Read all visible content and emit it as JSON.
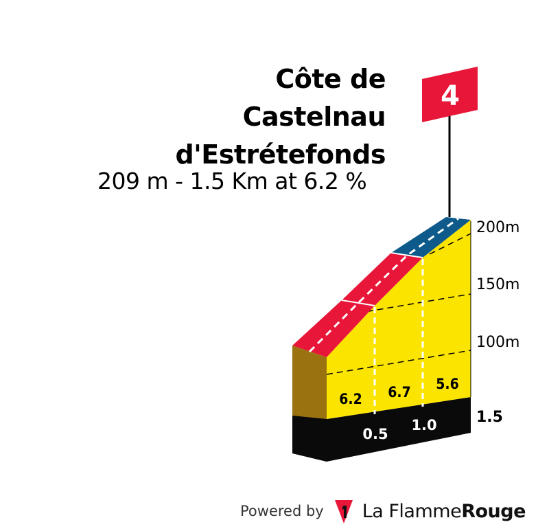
{
  "climb": {
    "name_lines": [
      "Côte de",
      "Castelnau",
      "d'Estrétefonds"
    ],
    "summary": "209 m - 1.5 Km at 6.2 %",
    "category": "4"
  },
  "chart_data": {
    "type": "area",
    "title": "Côte de Castelnau d'Estrétefonds",
    "subtitle": "209 m - 1.5 Km at 6.2 %",
    "x_unit": "km",
    "y_unit": "m",
    "x_ticks": [
      "0.5",
      "1.0"
    ],
    "x_total_label": "1.5",
    "y_ticks": [
      "100m",
      "150m",
      "200m"
    ],
    "y_tick_values": [
      100,
      150,
      200
    ],
    "ylim": [
      50,
      210
    ],
    "segments": [
      {
        "from_km": 0.0,
        "to_km": 0.5,
        "gradient": 6.2,
        "gradient_label": "6.2",
        "color": "#e8173a"
      },
      {
        "from_km": 0.5,
        "to_km": 1.0,
        "gradient": 6.7,
        "gradient_label": "6.7",
        "color": "#e8173a"
      },
      {
        "from_km": 1.0,
        "to_km": 1.5,
        "gradient": 5.6,
        "gradient_label": "5.6",
        "color": "#0e5a8a"
      }
    ],
    "profile": [
      {
        "km": 0.0,
        "altitude": 116
      },
      {
        "km": 0.5,
        "altitude": 147
      },
      {
        "km": 1.0,
        "altitude": 181
      },
      {
        "km": 1.5,
        "altitude": 209
      }
    ],
    "grid": true
  },
  "colors": {
    "fill": "#fbe400",
    "side": "#9a7310",
    "base": "#0a0a0a",
    "flag": "#e8173a",
    "steep": "#e8173a",
    "moderate": "#0e5a8a"
  },
  "footer": {
    "powered_by": "Powered by",
    "brand_prefix": "La Flamme",
    "brand_suffix": "Rouge",
    "logo_icon": "flamme-rouge-icon"
  }
}
